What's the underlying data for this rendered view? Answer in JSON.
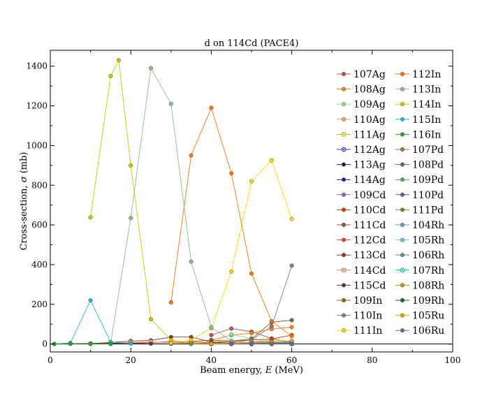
{
  "chart_data": {
    "type": "line",
    "title": "d on 114Cd (PACE4)",
    "xlabel": "Beam energy, E (MeV)",
    "ylabel": "Cross-section, σ (mb)",
    "xlim": [
      0,
      100
    ],
    "ylim": [
      -40,
      1480
    ],
    "xticks": [
      0,
      20,
      40,
      60,
      80,
      100
    ],
    "yticks": [
      0,
      200,
      400,
      600,
      800,
      1000,
      1200,
      1400
    ],
    "grid": false,
    "legend_position": "top-right",
    "series": [
      {
        "name": "107Ag",
        "color": "#c0504d",
        "marker": "dot",
        "x": [
          40,
          45,
          50,
          55,
          60
        ],
        "y": [
          45,
          78,
          62,
          28,
          8
        ]
      },
      {
        "name": "108Ag",
        "color": "#ff7f0e",
        "marker": "dot",
        "x": [
          40,
          45,
          50,
          55,
          60
        ],
        "y": [
          20,
          45,
          55,
          75,
          85
        ]
      },
      {
        "name": "109Ag",
        "color": "#98df8a",
        "marker": "dot",
        "x": [
          40,
          45,
          50,
          55,
          60
        ],
        "y": [
          5,
          48,
          28,
          12,
          4
        ]
      },
      {
        "name": "110Ag",
        "color": "#f4a460",
        "marker": "dot",
        "x": [
          45,
          50,
          55,
          60
        ],
        "y": [
          2,
          10,
          20,
          15
        ]
      },
      {
        "name": "111Ag",
        "color": "#b8b800",
        "marker": "ring",
        "x": [
          45,
          50,
          55,
          60
        ],
        "y": [
          1,
          3,
          6,
          4
        ]
      },
      {
        "name": "112Ag",
        "color": "#3333cc",
        "marker": "ring",
        "x": [
          50,
          55,
          60
        ],
        "y": [
          0,
          1,
          1
        ]
      },
      {
        "name": "113Ag",
        "color": "#2a1a6e",
        "marker": "dot",
        "x": [
          50,
          55,
          60
        ],
        "y": [
          0,
          0,
          0
        ]
      },
      {
        "name": "114Ag",
        "color": "#1f1f8f",
        "marker": "dot",
        "x": [
          50,
          55,
          60
        ],
        "y": [
          0,
          0,
          0
        ]
      },
      {
        "name": "109Cd",
        "color": "#9467bd",
        "marker": "dot",
        "x": [
          40,
          45,
          50,
          55,
          60
        ],
        "y": [
          0,
          2,
          10,
          12,
          8
        ]
      },
      {
        "name": "110Cd",
        "color": "#c2410c",
        "marker": "dot",
        "x": [
          35,
          40,
          45,
          50,
          55,
          60
        ],
        "y": [
          2,
          8,
          15,
          20,
          25,
          45
        ]
      },
      {
        "name": "111Cd",
        "color": "#8b5a2b",
        "marker": "dot",
        "x": [
          30,
          35,
          40,
          45,
          50,
          55,
          60
        ],
        "y": [
          5,
          12,
          20,
          15,
          25,
          110,
          120
        ]
      },
      {
        "name": "112Cd",
        "color": "#e8452a",
        "marker": "dot",
        "x": [
          20,
          25,
          30,
          35,
          40,
          45,
          50,
          55,
          60
        ],
        "y": [
          3,
          8,
          12,
          10,
          8,
          6,
          5,
          4,
          3
        ]
      },
      {
        "name": "113Cd",
        "color": "#8b3a1a",
        "marker": "dot",
        "x": [
          10,
          15,
          20,
          25,
          30,
          35,
          40,
          45,
          50,
          55,
          60
        ],
        "y": [
          2,
          8,
          15,
          18,
          35,
          35,
          10,
          5,
          3,
          2,
          2
        ]
      },
      {
        "name": "114Cd",
        "color": "#c08060",
        "marker": "ring",
        "x": [
          10,
          15,
          20,
          25,
          30,
          35,
          40
        ],
        "y": [
          1,
          4,
          8,
          10,
          8,
          4,
          2
        ]
      },
      {
        "name": "115Cd",
        "color": "#5a3a2a",
        "marker": "dot",
        "x": [
          5,
          10,
          15,
          20,
          25,
          30
        ],
        "y": [
          1,
          3,
          4,
          3,
          2,
          1
        ]
      },
      {
        "name": "109In",
        "color": "#8b6914",
        "marker": "dot",
        "x": [
          45,
          50,
          55,
          60
        ],
        "y": [
          0,
          2,
          8,
          12
        ]
      },
      {
        "name": "110In",
        "color": "#808080",
        "marker": "dot",
        "x": [
          35,
          40,
          45,
          50,
          55,
          60
        ],
        "y": [
          1,
          3,
          8,
          20,
          90,
          395
        ]
      },
      {
        "name": "111In",
        "color": "#ffd700",
        "marker": "dot",
        "x": [
          30,
          35,
          40,
          45,
          50,
          55,
          60
        ],
        "y": [
          5,
          20,
          80,
          365,
          820,
          925,
          630
        ]
      },
      {
        "name": "112In",
        "color": "#f97306",
        "marker": "dot",
        "x": [
          30,
          35,
          40,
          45,
          50,
          55,
          60
        ],
        "y": [
          210,
          950,
          1190,
          860,
          355,
          115,
          40
        ]
      },
      {
        "name": "113In",
        "color": "#8fbc8f",
        "marker": "dot",
        "x": [
          15,
          20,
          25,
          30,
          35,
          40,
          45,
          50,
          55,
          60
        ],
        "y": [
          5,
          635,
          1390,
          1210,
          415,
          85,
          15,
          5,
          3,
          2
        ]
      },
      {
        "name": "114In",
        "color": "#c8c800",
        "marker": "dot",
        "x": [
          10,
          15,
          17,
          20,
          25,
          30,
          35,
          40
        ],
        "y": [
          638,
          1350,
          1430,
          900,
          125,
          20,
          5,
          2
        ]
      },
      {
        "name": "115In",
        "color": "#17becf",
        "marker": "dot",
        "x": [
          1,
          5,
          10,
          15,
          20
        ],
        "y": [
          0,
          5,
          220,
          10,
          2
        ]
      },
      {
        "name": "116In",
        "color": "#2ca02c",
        "marker": "dot",
        "x": [
          1,
          5,
          10,
          15
        ],
        "y": [
          0,
          2,
          1,
          0
        ]
      },
      {
        "name": "107Pd",
        "color": "#a07830",
        "marker": "dot",
        "x": [
          50,
          55,
          60
        ],
        "y": [
          0,
          2,
          5
        ]
      },
      {
        "name": "108Pd",
        "color": "#4a7a4a",
        "marker": "dot",
        "x": [
          45,
          50,
          55,
          60
        ],
        "y": [
          0,
          2,
          4,
          6
        ]
      },
      {
        "name": "109Pd",
        "color": "#4caf50",
        "marker": "dot",
        "x": [
          40,
          45,
          50,
          55,
          60
        ],
        "y": [
          1,
          3,
          5,
          6,
          6
        ]
      },
      {
        "name": "110Pd",
        "color": "#4a6a8a",
        "marker": "dot",
        "x": [
          40,
          45,
          50,
          55,
          60
        ],
        "y": [
          0,
          1,
          2,
          3,
          3
        ]
      },
      {
        "name": "111Pd",
        "color": "#7a8a30",
        "marker": "dot",
        "x": [
          35,
          40,
          45,
          50,
          55,
          60
        ],
        "y": [
          0,
          1,
          2,
          3,
          3,
          2
        ]
      },
      {
        "name": "104Rh",
        "color": "#6a9ac4",
        "marker": "dot",
        "x": [
          50,
          55,
          60
        ],
        "y": [
          0,
          1,
          2
        ]
      },
      {
        "name": "105Rh",
        "color": "#6ec8c0",
        "marker": "dot",
        "x": [
          45,
          50,
          55,
          60
        ],
        "y": [
          0,
          2,
          5,
          8
        ]
      },
      {
        "name": "106Rh",
        "color": "#6a8ca0",
        "marker": "dot",
        "x": [
          45,
          50,
          55,
          60
        ],
        "y": [
          0,
          1,
          2,
          3
        ]
      },
      {
        "name": "107Rh",
        "color": "#00c8a0",
        "marker": "ring",
        "x": [
          40,
          45,
          50,
          55,
          60
        ],
        "y": [
          0,
          1,
          1,
          2,
          2
        ]
      },
      {
        "name": "108Rh",
        "color": "#c89010",
        "marker": "dot",
        "x": [
          40,
          45,
          50,
          55,
          60
        ],
        "y": [
          0,
          1,
          1,
          1,
          1
        ]
      },
      {
        "name": "109Rh",
        "color": "#1a6a1a",
        "marker": "dot",
        "x": [
          40,
          45,
          50,
          55,
          60
        ],
        "y": [
          2,
          2,
          3,
          3,
          3
        ]
      },
      {
        "name": "105Ru",
        "color": "#f0a000",
        "marker": "dot",
        "x": [
          40,
          45,
          50,
          55,
          60
        ],
        "y": [
          1,
          3,
          6,
          10,
          14
        ]
      },
      {
        "name": "106Ru",
        "color": "#7a5aa0",
        "marker": "dot",
        "x": [
          45,
          50,
          55,
          60
        ],
        "y": [
          0,
          1,
          1,
          1
        ]
      }
    ]
  }
}
